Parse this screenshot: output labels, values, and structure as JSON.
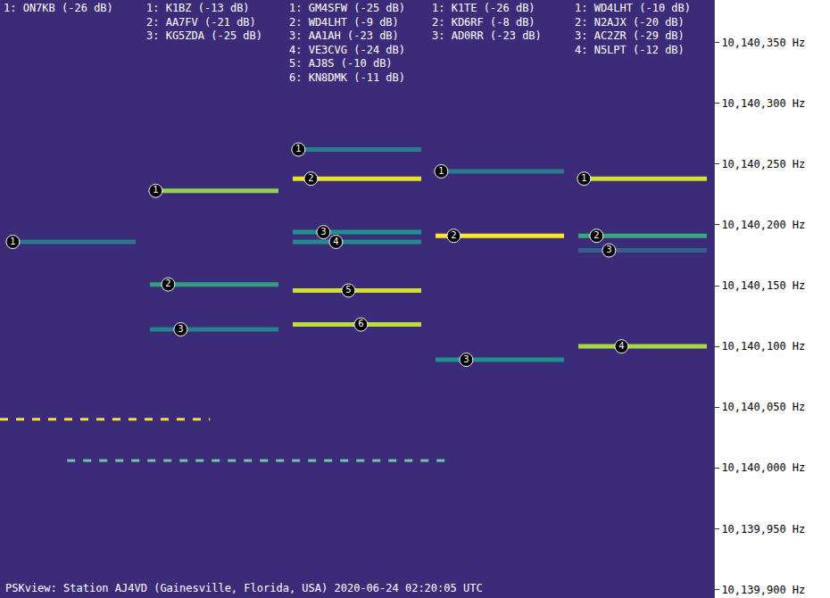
{
  "chart_data": {
    "type": "spectrogram",
    "title": "PSKview: Station AJ4VD (Gainesville, Florida, USA) 2020-06-24 02:20:05 UTC",
    "categories": [
      null,
      null,
      null,
      null,
      null
    ],
    "ylim": [
      10139893,
      10140385
    ],
    "yticks": [
      {
        "value": 10139900,
        "label": "10,139,900 Hz"
      },
      {
        "value": 10139950,
        "label": "10,139,950 Hz"
      },
      {
        "value": 10140000,
        "label": "10,140,000 Hz"
      },
      {
        "value": 10140050,
        "label": "10,140,050 Hz"
      },
      {
        "value": 10140100,
        "label": "10,140,100 Hz"
      },
      {
        "value": 10140150,
        "label": "10,140,150 Hz"
      },
      {
        "value": 10140200,
        "label": "10,140,200 Hz"
      },
      {
        "value": 10140250,
        "label": "10,140,250 Hz"
      },
      {
        "value": 10140300,
        "label": "10,140,300 Hz"
      },
      {
        "value": 10140350,
        "label": "10,140,350 Hz"
      }
    ],
    "grid": false,
    "tick_labels": "y",
    "decodes": [
      {
        "column": 0,
        "number": 1,
        "label": "1: ON7KB (-26 dB)",
        "snr": -26,
        "freq": 10140186
      },
      {
        "column": 1,
        "number": 1,
        "label": "1: K1BZ (-13 dB)",
        "snr": -13,
        "freq": 10140228
      },
      {
        "column": 1,
        "number": 2,
        "label": "2: AA7FV (-21 dB)",
        "snr": -21,
        "freq": 10140151
      },
      {
        "column": 1,
        "number": 3,
        "label": "3: KG5ZDA (-25 dB)",
        "snr": -25,
        "freq": 10140114
      },
      {
        "column": 2,
        "number": 1,
        "label": "1: GM4SFW (-25 dB)",
        "snr": -25,
        "freq": 10140262
      },
      {
        "column": 2,
        "number": 2,
        "label": "2: WD4LHT (-9 dB)",
        "snr": -9,
        "freq": 10140238
      },
      {
        "column": 2,
        "number": 3,
        "label": "3: AA1AH (-23 dB)",
        "snr": -23,
        "freq": 10140194
      },
      {
        "column": 2,
        "number": 4,
        "label": "4: VE3CVG (-24 dB)",
        "snr": -24,
        "freq": 10140186
      },
      {
        "column": 2,
        "number": 5,
        "label": "5: AJ8S (-10 dB)",
        "snr": -10,
        "freq": 10140146
      },
      {
        "column": 2,
        "number": 6,
        "label": "6: KN8DMK (-11 dB)",
        "snr": -11,
        "freq": 10140118
      },
      {
        "column": 3,
        "number": 1,
        "label": "1: K1TE (-26 dB)",
        "snr": -26,
        "freq": 10140244
      },
      {
        "column": 3,
        "number": 2,
        "label": "2: KD6RF (-8 dB)",
        "snr": -8,
        "freq": 10140191
      },
      {
        "column": 3,
        "number": 3,
        "label": "3: AD0RR (-23 dB)",
        "snr": -23,
        "freq": 10140089
      },
      {
        "column": 4,
        "number": 1,
        "label": "1: WD4LHT (-10 dB)",
        "snr": -10,
        "freq": 10140238
      },
      {
        "column": 4,
        "number": 2,
        "label": "2: N2AJX (-20 dB)",
        "snr": -20,
        "freq": 10140191
      },
      {
        "column": 4,
        "number": 3,
        "label": "3: AC2ZR (-29 dB)",
        "snr": -29,
        "freq": 10140179
      },
      {
        "column": 4,
        "number": 4,
        "label": "4: N5LPT (-12 dB)",
        "snr": -12,
        "freq": 10140100
      }
    ],
    "signals": [
      {
        "freq": 10140040,
        "start": -0.5,
        "end": 0.97,
        "color": "#f2e03c",
        "line_style": "dash"
      },
      {
        "freq": 10140006,
        "start": -0.03,
        "end": 2.66,
        "color": "#6cc7a4",
        "line_style": "dash"
      }
    ]
  }
}
